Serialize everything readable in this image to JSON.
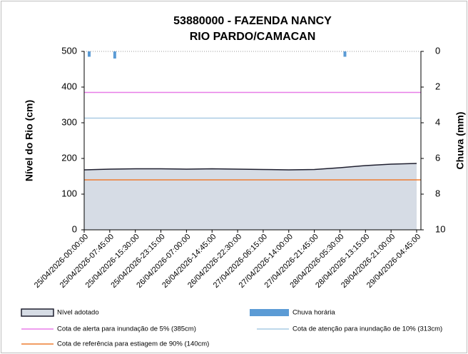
{
  "chart_data": {
    "type": "area",
    "title": "53880000 - FAZENDA NANCY",
    "subtitle": "RIO PARDO/CAMACAN",
    "y_label": "Nível do Rio (cm)",
    "y2_label": "Chuva (mm)",
    "categories": [
      "25/04/2026-00:00:00",
      "25/04/2026-07:45:00",
      "25/04/2026-15:30:00",
      "25/04/2026-23:15:00",
      "26/04/2026-07:00:00",
      "26/04/2026-14:45:00",
      "26/04/2026-22:30:00",
      "27/04/2026-06:15:00",
      "27/04/2026-14:00:00",
      "27/04/2026-21:45:00",
      "28/04/2026-05:30:00",
      "28/04/2026-13:15:00",
      "28/04/2026-21:00:00",
      "29/04/2026-04:45:00"
    ],
    "ylim": [
      0,
      500
    ],
    "yticks": [
      0,
      100,
      200,
      300,
      400,
      500
    ],
    "y2lim": [
      0,
      10
    ],
    "y2ticks": [
      0,
      2,
      4,
      6,
      8,
      10
    ],
    "y2_inverted": true,
    "series": [
      {
        "name": "Nível adotado",
        "color": "#d6dce5",
        "values": [
          168,
          170,
          171,
          171,
          170,
          171,
          170,
          169,
          168,
          169,
          174,
          180,
          184,
          186
        ]
      },
      {
        "name": "Chuva horária",
        "color": "#5b9bd5",
        "axis": "y2",
        "values": [
          0.3,
          0.4,
          0,
          0,
          0,
          0,
          0,
          0,
          0,
          0,
          0.3,
          0,
          0,
          0
        ]
      }
    ],
    "reference_lines": [
      {
        "name": "Cota de alerta para inundação de 5% (385cm)",
        "value": 385,
        "color": "#e87de8"
      },
      {
        "name": "Cota de atenção para inundação de 10% (313cm)",
        "value": 313,
        "color": "#a9cbe3"
      },
      {
        "name": "Cota de referência para estiagem de 90% (140cm)",
        "value": 140,
        "color": "#ed7d31"
      }
    ]
  }
}
